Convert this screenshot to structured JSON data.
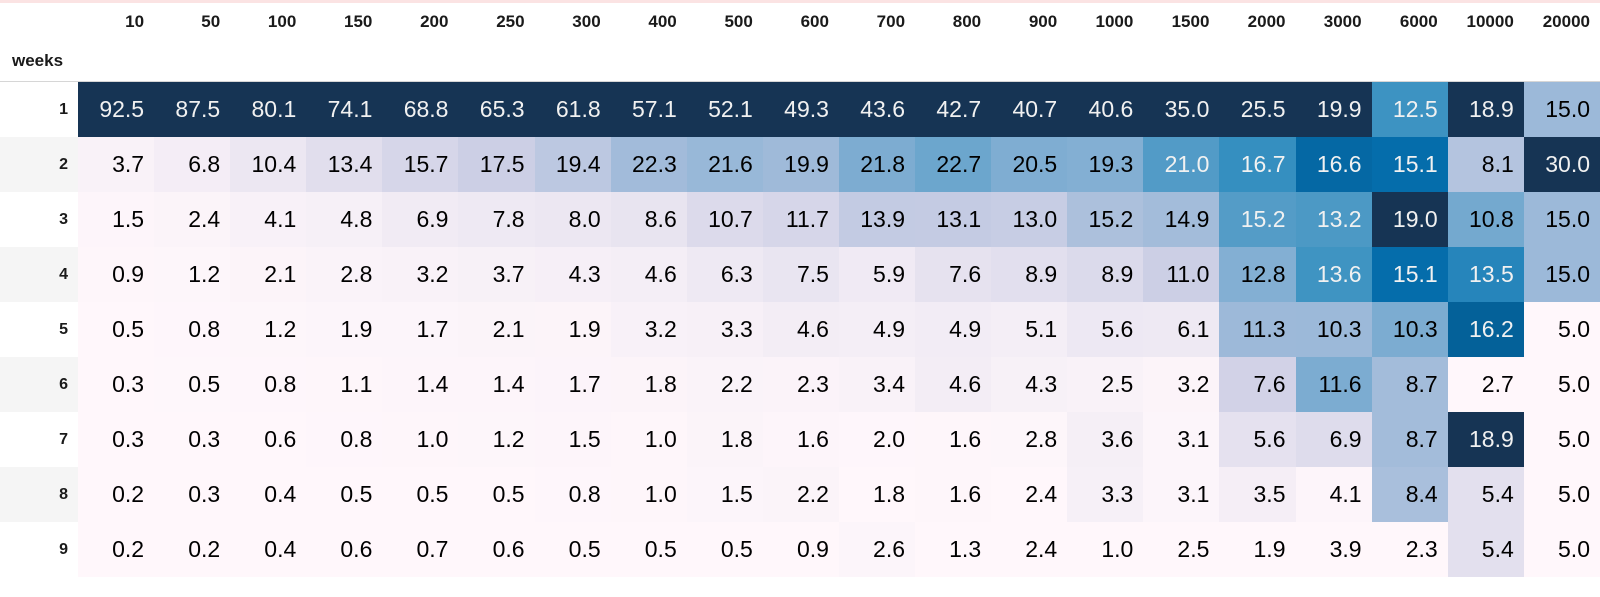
{
  "colormap": "PuBu",
  "table": {
    "index_name": "weeks",
    "columns": [
      "10",
      "50",
      "100",
      "150",
      "200",
      "250",
      "300",
      "400",
      "500",
      "600",
      "700",
      "800",
      "900",
      "1000",
      "1500",
      "2000",
      "3000",
      "6000",
      "10000",
      "20000"
    ],
    "rows": [
      {
        "label": "1",
        "values": [
          "92.5",
          "87.5",
          "80.1",
          "74.1",
          "68.8",
          "65.3",
          "61.8",
          "57.1",
          "52.1",
          "49.3",
          "43.6",
          "42.7",
          "40.7",
          "40.6",
          "35.0",
          "25.5",
          "19.9",
          "12.5",
          "18.9",
          "15.0"
        ]
      },
      {
        "label": "2",
        "values": [
          "3.7",
          "6.8",
          "10.4",
          "13.4",
          "15.7",
          "17.5",
          "19.4",
          "22.3",
          "21.6",
          "19.9",
          "21.8",
          "22.7",
          "20.5",
          "19.3",
          "21.0",
          "16.7",
          "16.6",
          "15.1",
          "8.1",
          "30.0"
        ]
      },
      {
        "label": "3",
        "values": [
          "1.5",
          "2.4",
          "4.1",
          "4.8",
          "6.9",
          "7.8",
          "8.0",
          "8.6",
          "10.7",
          "11.7",
          "13.9",
          "13.1",
          "13.0",
          "15.2",
          "14.9",
          "15.2",
          "13.2",
          "19.0",
          "10.8",
          "15.0"
        ]
      },
      {
        "label": "4",
        "values": [
          "0.9",
          "1.2",
          "2.1",
          "2.8",
          "3.2",
          "3.7",
          "4.3",
          "4.6",
          "6.3",
          "7.5",
          "5.9",
          "7.6",
          "8.9",
          "8.9",
          "11.0",
          "12.8",
          "13.6",
          "15.1",
          "13.5",
          "15.0"
        ]
      },
      {
        "label": "5",
        "values": [
          "0.5",
          "0.8",
          "1.2",
          "1.9",
          "1.7",
          "2.1",
          "1.9",
          "3.2",
          "3.3",
          "4.6",
          "4.9",
          "4.9",
          "5.1",
          "5.6",
          "6.1",
          "11.3",
          "10.3",
          "10.3",
          "16.2",
          "5.0"
        ]
      },
      {
        "label": "6",
        "values": [
          "0.3",
          "0.5",
          "0.8",
          "1.1",
          "1.4",
          "1.4",
          "1.7",
          "1.8",
          "2.2",
          "2.3",
          "3.4",
          "4.6",
          "4.3",
          "2.5",
          "3.2",
          "7.6",
          "11.6",
          "8.7",
          "2.7",
          "5.0"
        ]
      },
      {
        "label": "7",
        "values": [
          "0.3",
          "0.3",
          "0.6",
          "0.8",
          "1.0",
          "1.2",
          "1.5",
          "1.0",
          "1.8",
          "1.6",
          "2.0",
          "1.6",
          "2.8",
          "3.6",
          "3.1",
          "5.6",
          "6.9",
          "8.7",
          "18.9",
          "5.0"
        ]
      },
      {
        "label": "8",
        "values": [
          "0.2",
          "0.3",
          "0.4",
          "0.5",
          "0.5",
          "0.5",
          "0.8",
          "1.0",
          "1.5",
          "2.2",
          "1.8",
          "1.6",
          "2.4",
          "3.3",
          "3.1",
          "3.5",
          "4.1",
          "8.4",
          "5.4",
          "5.0"
        ]
      },
      {
        "label": "9",
        "values": [
          "0.2",
          "0.2",
          "0.4",
          "0.6",
          "0.7",
          "0.6",
          "0.5",
          "0.5",
          "0.5",
          "0.9",
          "2.6",
          "1.3",
          "2.4",
          "1.0",
          "2.5",
          "1.9",
          "3.9",
          "2.3",
          "5.4",
          "5.0"
        ]
      }
    ]
  },
  "chart_data": {
    "type": "heatmap",
    "title": "",
    "xlabel": "",
    "ylabel": "weeks",
    "x": [
      "10",
      "50",
      "100",
      "150",
      "200",
      "250",
      "300",
      "400",
      "500",
      "600",
      "700",
      "800",
      "900",
      "1000",
      "1500",
      "2000",
      "3000",
      "6000",
      "10000",
      "20000"
    ],
    "y": [
      "1",
      "2",
      "3",
      "4",
      "5",
      "6",
      "7",
      "8",
      "9"
    ],
    "values": [
      [
        92.5,
        87.5,
        80.1,
        74.1,
        68.8,
        65.3,
        61.8,
        57.1,
        52.1,
        49.3,
        43.6,
        42.7,
        40.7,
        40.6,
        35.0,
        25.5,
        19.9,
        12.5,
        18.9,
        15.0
      ],
      [
        3.7,
        6.8,
        10.4,
        13.4,
        15.7,
        17.5,
        19.4,
        22.3,
        21.6,
        19.9,
        21.8,
        22.7,
        20.5,
        19.3,
        21.0,
        16.7,
        16.6,
        15.1,
        8.1,
        30.0
      ],
      [
        1.5,
        2.4,
        4.1,
        4.8,
        6.9,
        7.8,
        8.0,
        8.6,
        10.7,
        11.7,
        13.9,
        13.1,
        13.0,
        15.2,
        14.9,
        15.2,
        13.2,
        19.0,
        10.8,
        15.0
      ],
      [
        0.9,
        1.2,
        2.1,
        2.8,
        3.2,
        3.7,
        4.3,
        4.6,
        6.3,
        7.5,
        5.9,
        7.6,
        8.9,
        8.9,
        11.0,
        12.8,
        13.6,
        15.1,
        13.5,
        15.0
      ],
      [
        0.5,
        0.8,
        1.2,
        1.9,
        1.7,
        2.1,
        1.9,
        3.2,
        3.3,
        4.6,
        4.9,
        4.9,
        5.1,
        5.6,
        6.1,
        11.3,
        10.3,
        10.3,
        16.2,
        5.0
      ],
      [
        0.3,
        0.5,
        0.8,
        1.1,
        1.4,
        1.4,
        1.7,
        1.8,
        2.2,
        2.3,
        3.4,
        4.6,
        4.3,
        2.5,
        3.2,
        7.6,
        11.6,
        8.7,
        2.7,
        5.0
      ],
      [
        0.3,
        0.3,
        0.6,
        0.8,
        1.0,
        1.2,
        1.5,
        1.0,
        1.8,
        1.6,
        2.0,
        1.6,
        2.8,
        3.6,
        3.1,
        5.6,
        6.9,
        8.7,
        18.9,
        5.0
      ],
      [
        0.2,
        0.3,
        0.4,
        0.5,
        0.5,
        0.5,
        0.8,
        1.0,
        1.5,
        2.2,
        1.8,
        1.6,
        2.4,
        3.3,
        3.1,
        3.5,
        4.1,
        8.4,
        5.4,
        5.0
      ],
      [
        0.2,
        0.2,
        0.4,
        0.6,
        0.7,
        0.6,
        0.5,
        0.5,
        0.5,
        0.9,
        2.6,
        1.3,
        2.4,
        1.0,
        2.5,
        1.9,
        3.9,
        2.3,
        5.4,
        5.0
      ]
    ],
    "colormap": "PuBu",
    "normalization": "per-column"
  }
}
